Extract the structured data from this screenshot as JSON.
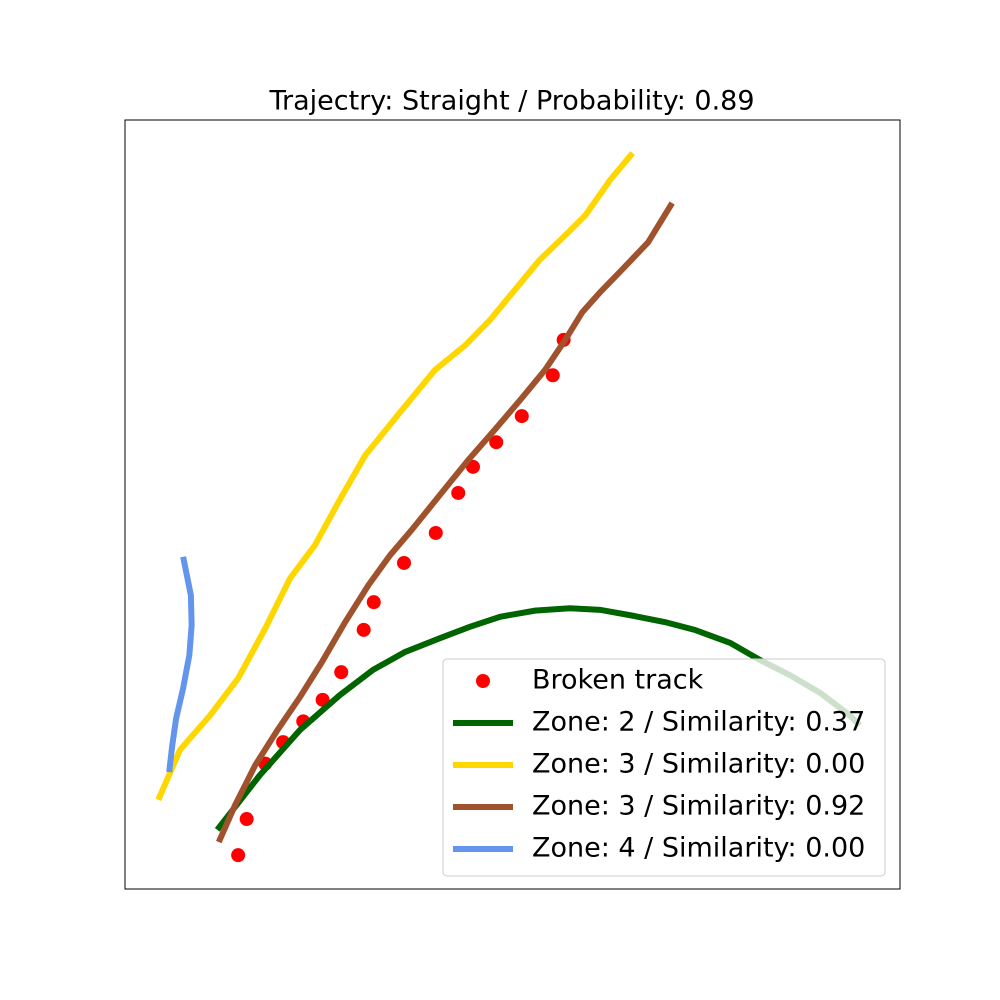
{
  "chart_data": {
    "type": "line",
    "title": "Trajectry: Straight / Probability: 0.89",
    "xlim": [
      0,
      100
    ],
    "ylim": [
      0,
      100
    ],
    "legend": "lower right",
    "series": [
      {
        "name": "Broken track",
        "color": "#ff0000",
        "style": "markers",
        "x": [
          14.6,
          15.7,
          18.1,
          20.4,
          23.0,
          25.5,
          27.9,
          30.8,
          32.1,
          36.0,
          40.1,
          43.0,
          44.9,
          47.9,
          51.2,
          55.2,
          56.6
        ],
        "values": [
          4.4,
          9.1,
          16.3,
          19.1,
          21.8,
          24.6,
          28.2,
          33.7,
          37.3,
          42.4,
          46.3,
          51.5,
          54.9,
          58.1,
          61.5,
          66.8,
          71.4
        ]
      },
      {
        "name": "Zone: 2 / Similarity: 0.37",
        "color": "#006400",
        "style": "line",
        "x": [
          11.9,
          17.4,
          22.6,
          27.7,
          32.0,
          36.1,
          40.6,
          44.5,
          48.4,
          52.9,
          57.4,
          61.3,
          65.2,
          69.7,
          73.5,
          78.1,
          81.9,
          85.8,
          89.7,
          93.5,
          94.8
        ],
        "values": [
          7.7,
          14.8,
          20.7,
          25.2,
          28.5,
          30.8,
          32.6,
          34.1,
          35.4,
          36.2,
          36.5,
          36.3,
          35.6,
          34.7,
          33.7,
          32.0,
          29.8,
          27.8,
          25.5,
          22.6,
          21.3
        ]
      },
      {
        "name": "Zone: 3 / Similarity: 0.00",
        "color": "#ffd700",
        "style": "line",
        "x": [
          4.3,
          7.1,
          11.0,
          14.6,
          18.1,
          21.3,
          24.5,
          27.7,
          31.0,
          35.5,
          40.0,
          43.9,
          47.1,
          50.3,
          53.5,
          56.8,
          59.4,
          62.6,
          65.5
        ],
        "values": [
          11.6,
          18.1,
          22.6,
          27.4,
          33.9,
          40.4,
          44.7,
          50.6,
          56.4,
          62.0,
          67.5,
          70.7,
          74.0,
          77.9,
          81.8,
          85.0,
          87.6,
          92.2,
          95.7
        ]
      },
      {
        "name": "Zone: 3 / Similarity: 0.92",
        "color": "#a0522d",
        "style": "line",
        "x": [
          12.1,
          14.2,
          16.8,
          19.7,
          22.6,
          25.4,
          28.4,
          31.4,
          34.2,
          37.0,
          40.6,
          44.3,
          47.7,
          51.0,
          54.2,
          56.8,
          59.0,
          61.3,
          64.1,
          67.5,
          70.6
        ],
        "values": [
          6.1,
          10.9,
          16.1,
          20.7,
          25.0,
          29.5,
          34.7,
          39.5,
          43.4,
          46.7,
          51.2,
          55.8,
          59.7,
          63.6,
          67.5,
          71.4,
          75.0,
          77.6,
          80.5,
          84.1,
          89.2
        ]
      },
      {
        "name": "Zone: 4 / Similarity: 0.00",
        "color": "#6495ed",
        "style": "line",
        "x": [
          7.5,
          8.5,
          8.6,
          8.3,
          7.5,
          6.6,
          6.1,
          5.7
        ],
        "values": [
          43.2,
          38.2,
          34.3,
          30.4,
          26.1,
          22.2,
          18.7,
          15.2
        ]
      }
    ]
  }
}
